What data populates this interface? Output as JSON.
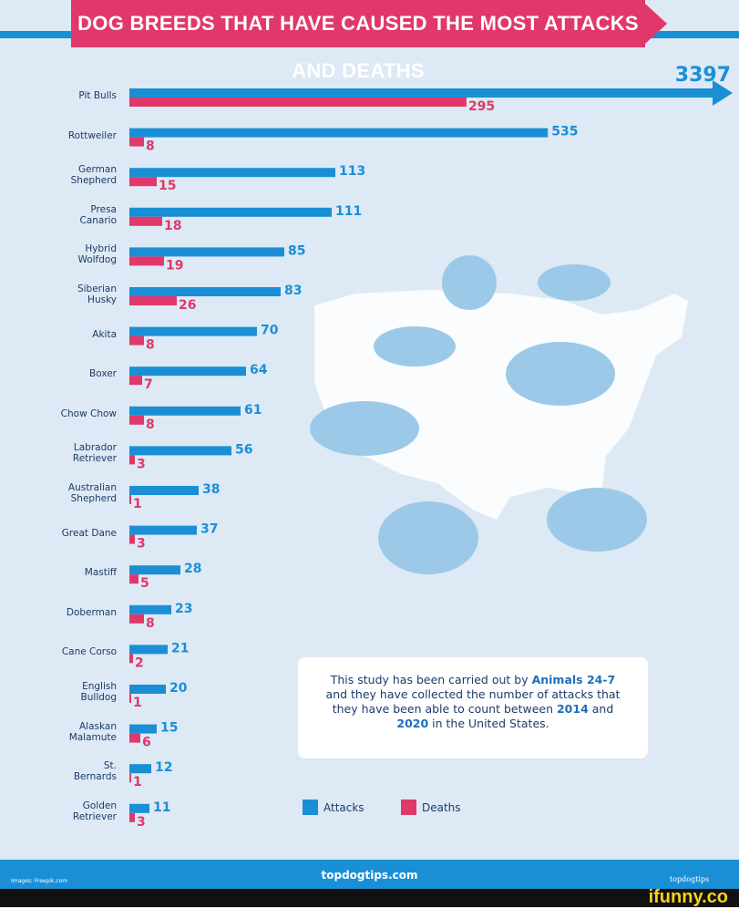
{
  "chart_data": {
    "type": "bar",
    "title": "DOG BREEDS THAT HAVE CAUSED THE MOST ATTACKS AND DEATHS",
    "categories": [
      "Pit Bulls",
      "Rottweiler",
      "German Shepherd",
      "Presa Canario",
      "Hybrid Wolfdog",
      "Siberian Husky",
      "Akita",
      "Boxer",
      "Chow Chow",
      "Labrador Retriever",
      "Australian Shepherd",
      "Great Dane",
      "Mastiff",
      "Doberman",
      "Cane Corso",
      "English Bulldog",
      "Alaskan Malamute",
      "St. Bernards",
      "Golden Retriever"
    ],
    "series": [
      {
        "name": "Attacks",
        "color": "#1a8fd6",
        "values": [
          3397,
          535,
          113,
          111,
          85,
          83,
          70,
          64,
          61,
          56,
          38,
          37,
          28,
          23,
          21,
          20,
          15,
          12,
          11
        ]
      },
      {
        "name": "Deaths",
        "color": "#e0386b",
        "values": [
          295,
          8,
          15,
          18,
          19,
          26,
          8,
          7,
          8,
          3,
          1,
          3,
          5,
          8,
          2,
          1,
          6,
          1,
          3
        ]
      }
    ],
    "note": [
      "This study has been carried out by ",
      "Animals 24-7",
      " and they have collected the number of attacks that they have been able to count between ",
      "2014",
      " and ",
      "2020",
      " in the United States."
    ],
    "legend": "bottom"
  },
  "footer": {
    "site": "topdogtips.com",
    "credit": "Images: Freepik.com",
    "logo": "topdogtips",
    "watermark": "ifunny.co"
  }
}
